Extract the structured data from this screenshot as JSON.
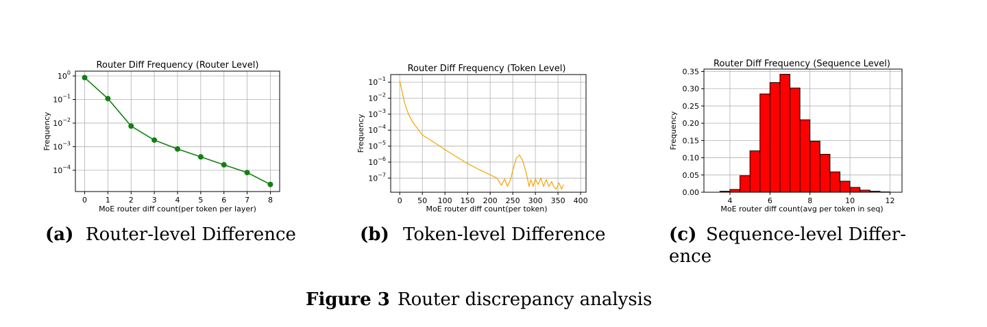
{
  "chart_data": [
    {
      "type": "line",
      "id": "router",
      "title": "Router Diff Frequency (Router Level)",
      "xlabel": "MoE router diff count(per token per layer)",
      "ylabel": "Frequency",
      "yscale": "log",
      "xlim": [
        -0.4,
        8.4
      ],
      "ylim": [
        1.25e-05,
        1.6
      ],
      "xticks": [
        0,
        1,
        2,
        3,
        4,
        5,
        6,
        7,
        8
      ],
      "yticks": [
        {
          "value": 1,
          "base": "10",
          "exp": "0"
        },
        {
          "value": 0.1,
          "base": "10",
          "exp": "−1"
        },
        {
          "value": 0.01,
          "base": "10",
          "exp": "−2"
        },
        {
          "value": 0.001,
          "base": "10",
          "exp": "−3"
        },
        {
          "value": 0.0001,
          "base": "10",
          "exp": "−4"
        }
      ],
      "grid": true,
      "color": "#137f13",
      "x": [
        0,
        1,
        2,
        3,
        4,
        5,
        6,
        7,
        8
      ],
      "y": [
        0.85,
        0.11,
        0.0075,
        0.0019,
        0.0008,
        0.00037,
        0.00017,
        8e-05,
        2.5e-05
      ]
    },
    {
      "type": "line",
      "id": "token",
      "title": "Router Diff Frequency (Token Level)",
      "xlabel": "MoE router diff count(per token)",
      "ylabel": "Frequency",
      "yscale": "log",
      "xlim": [
        -20,
        412
      ],
      "ylim": [
        1.3e-08,
        0.3
      ],
      "xticks": [
        0,
        50,
        100,
        150,
        200,
        250,
        300,
        350,
        400
      ],
      "yticks": [
        {
          "value": 0.1,
          "base": "10",
          "exp": "−1"
        },
        {
          "value": 0.01,
          "base": "10",
          "exp": "−2"
        },
        {
          "value": 0.001,
          "base": "10",
          "exp": "−3"
        },
        {
          "value": 0.0001,
          "base": "10",
          "exp": "−4"
        },
        {
          "value": 1e-05,
          "base": "10",
          "exp": "−5"
        },
        {
          "value": 1e-06,
          "base": "10",
          "exp": "−6"
        },
        {
          "value": 1e-07,
          "base": "10",
          "exp": "−7"
        }
      ],
      "grid": true,
      "color": "#f5a300",
      "x": [
        0,
        3,
        6,
        10,
        15,
        20,
        30,
        40,
        50,
        70,
        100,
        130,
        150,
        175,
        200,
        215,
        225,
        232,
        238,
        245,
        250,
        258,
        265,
        272,
        280,
        286,
        290,
        295,
        300,
        306,
        312,
        318,
        324,
        330,
        336,
        340,
        346,
        352,
        358,
        362
      ],
      "y": [
        0.12,
        0.05,
        0.02,
        0.006,
        0.0022,
        0.0009,
        0.00028,
        0.00012,
        5e-05,
        2.2e-05,
        6e-06,
        1.8e-06,
        8e-07,
        3.5e-07,
        1.6e-07,
        1e-07,
        3.5e-08,
        9e-08,
        3e-08,
        8e-08,
        3e-07,
        1.8e-06,
        2.8e-06,
        1.2e-06,
        2e-07,
        3e-08,
        8e-08,
        3e-08,
        9e-08,
        4e-08,
        1e-07,
        3e-08,
        8e-08,
        3e-08,
        6e-08,
        3e-08,
        2e-08,
        5e-08,
        2e-08,
        4e-08
      ]
    },
    {
      "type": "bar",
      "id": "sequence",
      "title": "Router Diff Frequency (Sequence Level)",
      "xlabel": "MoE router diff count(avg per token in seq)",
      "ylabel": "Frequency",
      "xlim": [
        2.7,
        12.6
      ],
      "ylim": [
        0,
        0.357
      ],
      "xticks": [
        4,
        6,
        8,
        10,
        12
      ],
      "yticks": [
        0.0,
        0.05,
        0.1,
        0.15,
        0.2,
        0.25,
        0.3,
        0.35
      ],
      "ytick_labels": [
        "0.00",
        "0.05",
        "0.10",
        "0.15",
        "0.20",
        "0.25",
        "0.30",
        "0.35"
      ],
      "grid": true,
      "color": "#ff0000",
      "edgecolor": "#000000",
      "bin_edges": [
        3.5,
        4.0,
        4.5,
        5.0,
        5.5,
        6.0,
        6.5,
        7.0,
        7.5,
        8.0,
        8.5,
        9.0,
        9.5,
        10.0,
        10.5,
        11.0,
        11.5,
        12.0
      ],
      "values": [
        0.003,
        0.008,
        0.048,
        0.12,
        0.285,
        0.318,
        0.342,
        0.302,
        0.21,
        0.148,
        0.11,
        0.059,
        0.032,
        0.014,
        0.006,
        0.003,
        0.001
      ]
    }
  ],
  "captions": {
    "a_label": "(a)",
    "a_text": "Router-level Difference",
    "b_label": "(b)",
    "b_text": "Token-level Difference",
    "c_label": "(c)",
    "c_text_line1": "Sequence-level Differ-",
    "c_text_line2": "ence",
    "figure_label": "Figure 3",
    "figure_text": "Router discrepancy analysis"
  }
}
